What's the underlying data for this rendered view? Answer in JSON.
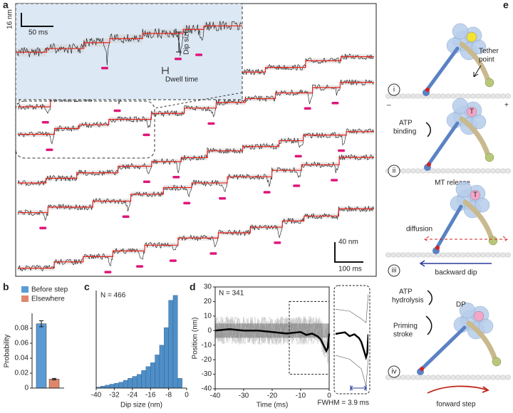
{
  "panel_a": {
    "label": "a",
    "inset_scale_y": "16 nm",
    "inset_scale_x": "50 ms",
    "dip_size": "Dip size",
    "dwell_time": "Dwell time",
    "scale_y": "40 nm",
    "scale_x": "100 ms"
  },
  "chart_data": [
    {
      "label": "b",
      "type": "bar",
      "ylabel": "Probability",
      "categories": [
        null
      ],
      "series": [
        {
          "name": "Before step",
          "color": "#5b9bd5",
          "values": [
            0.086
          ],
          "errors": [
            0.004
          ]
        },
        {
          "name": "Elsewhere",
          "color": "#e0876a",
          "values": [
            0.012
          ],
          "errors": [
            0.001
          ]
        }
      ],
      "ylim": [
        0,
        0.1
      ],
      "yticks": [
        0,
        0.02,
        0.04,
        0.06,
        0.08
      ]
    },
    {
      "label": "c",
      "type": "histogram",
      "annotation": "N = 466",
      "xlabel": "Dip size (nm)",
      "bins": [
        -40,
        -38,
        -36,
        -34,
        -32,
        -30,
        -28,
        -26,
        -24,
        -22,
        -20,
        -18,
        -16,
        -14,
        -12,
        -10,
        -8,
        -6,
        -4,
        -2,
        0
      ],
      "values": [
        1,
        2,
        3,
        4,
        5,
        6,
        8,
        10,
        12,
        14,
        18,
        22,
        26,
        34,
        44,
        62,
        90,
        95,
        10,
        0
      ],
      "color": "#4f8fc7",
      "xlim": [
        -40,
        0
      ],
      "xticks": [
        -40,
        -32,
        -24,
        -16,
        -8,
        0
      ],
      "ylim": [
        0,
        100
      ]
    },
    {
      "label": "d",
      "type": "line",
      "annotation": "N = 341",
      "inset_annotation": "FWHM = 3.9 ms",
      "xlabel": "Time (ms)",
      "ylabel": "Position (nm)",
      "x": [
        -40,
        -35,
        -30,
        -25,
        -20,
        -15,
        -10,
        -8,
        -6,
        -4,
        -3,
        -2,
        -1,
        -0.5,
        0
      ],
      "series": [
        {
          "color": "#000000",
          "values": [
            0,
            1,
            0,
            0,
            -1,
            -2,
            -1,
            -3,
            -2,
            -4,
            -6,
            -10,
            -14,
            -12,
            -2
          ]
        }
      ],
      "xlim": [
        -40,
        0
      ],
      "xticks": [
        -40,
        -30,
        -20,
        -10,
        0
      ],
      "ylim": [
        -40,
        30
      ],
      "yticks": [
        -40,
        -30,
        -20,
        -10,
        0,
        10,
        20,
        30
      ],
      "inset_xlim": [
        -14,
        0
      ],
      "inset_ylim": [
        -30,
        20
      ]
    }
  ],
  "panel_e": {
    "label": "e",
    "tether_point": [
      "Tether",
      "point"
    ],
    "minus": "–",
    "plus": "+",
    "step_i": "i",
    "atp_binding": [
      "ATP",
      "binding"
    ],
    "step_ii": "ii",
    "mt_release": "MT release",
    "step_iii": "iii",
    "diffusion": "diffusion",
    "backward_dip": "backward dip",
    "atp_hydrolysis": [
      "ATP",
      "hydrolysis"
    ],
    "dp": "DP",
    "priming_stroke": [
      "Priming",
      "stroke"
    ],
    "step_iv": "iv",
    "forward_step": "forward step",
    "t_label": "T"
  }
}
